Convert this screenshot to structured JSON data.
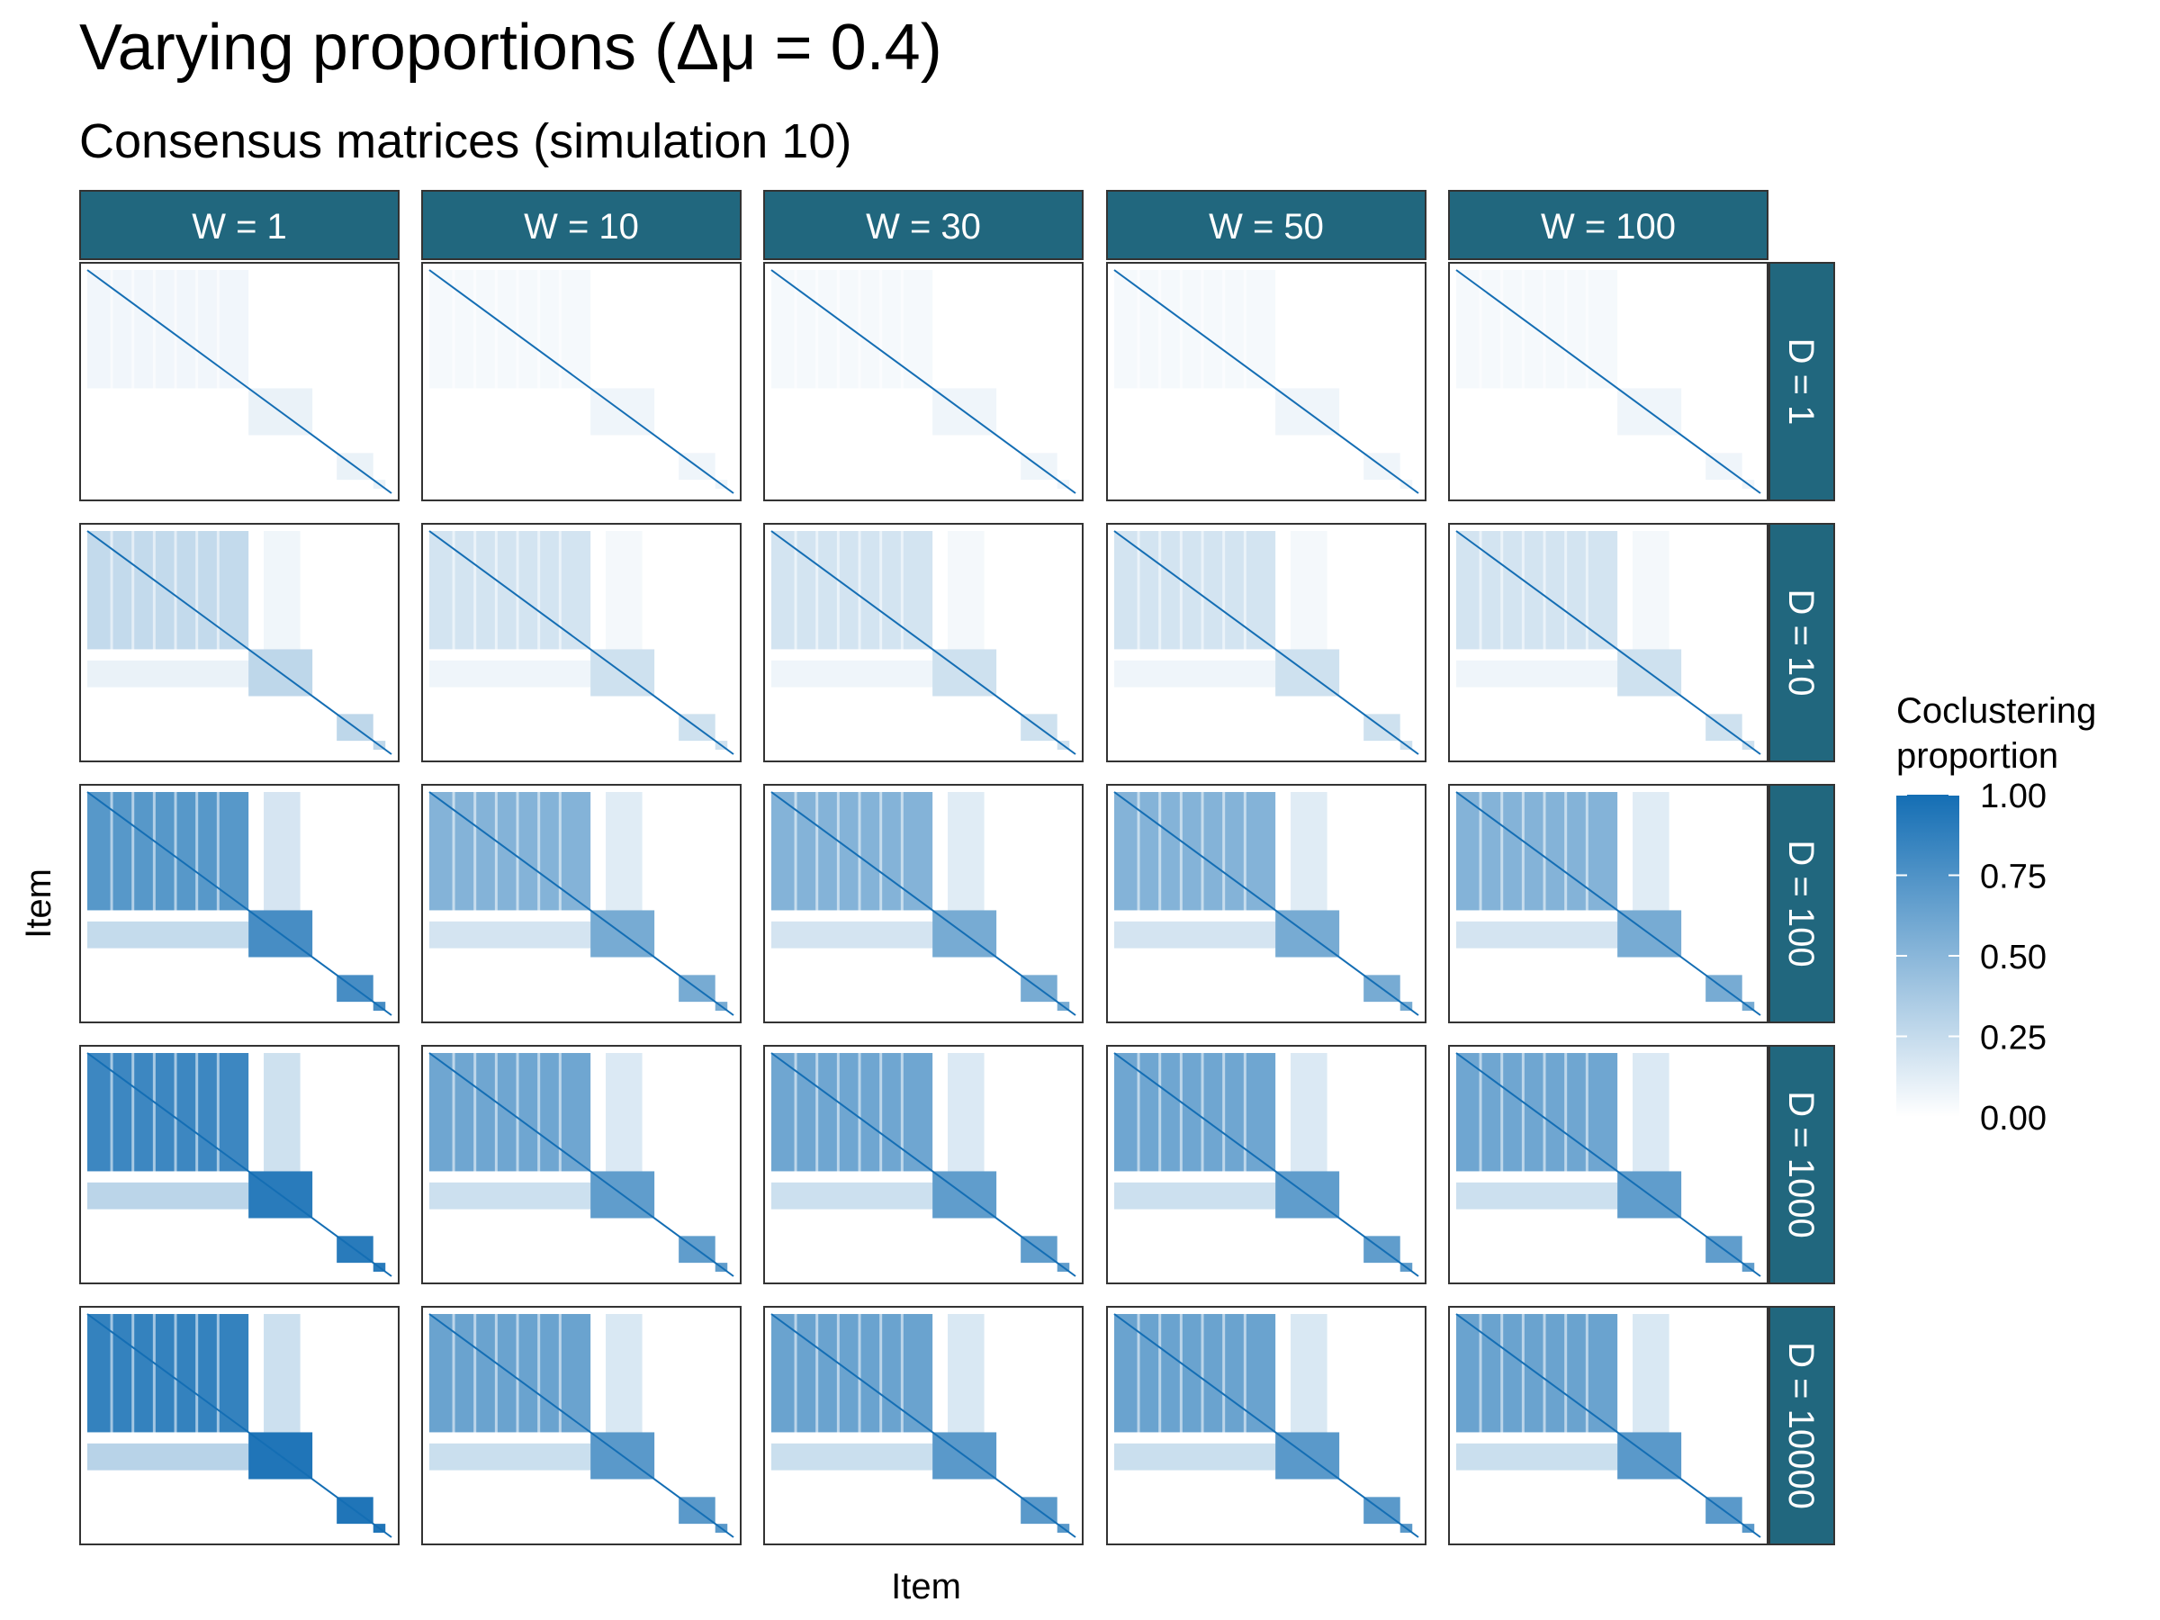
{
  "title": "Varying proportions (Δμ = 0.4)",
  "subtitle": "Consensus matrices (simulation 10)",
  "chart_data": {
    "type": "heatmap",
    "facet_columns": [
      "W = 1",
      "W = 10",
      "W = 30",
      "W = 50",
      "W = 100"
    ],
    "facet_rows": [
      "D = 1",
      "D = 10",
      "D = 100",
      "D = 1000",
      "D = 10000"
    ],
    "xlabel": "Item",
    "ylabel": "Item",
    "legend": {
      "title_lines": [
        "Coclustering",
        "proportion"
      ],
      "ticks": [
        "1.00",
        "0.75",
        "0.50",
        "0.25",
        "0.00"
      ],
      "tick_values": [
        1.0,
        0.75,
        0.5,
        0.25,
        0.0
      ],
      "range": [
        0,
        1
      ],
      "position": "right",
      "color_low": "#ffffff",
      "color_high": "#146eb4"
    },
    "strip_color": "#21677e",
    "grid": false
  }
}
